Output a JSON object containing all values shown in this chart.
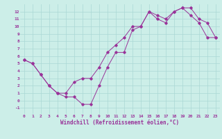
{
  "xlabel": "Windchill (Refroidissement éolien,°C)",
  "xlim": [
    -0.5,
    23.5
  ],
  "ylim": [
    -1.8,
    13.0
  ],
  "xticks": [
    0,
    1,
    2,
    3,
    4,
    5,
    6,
    7,
    8,
    9,
    10,
    11,
    12,
    13,
    14,
    15,
    16,
    17,
    18,
    19,
    20,
    21,
    22,
    23
  ],
  "yticks": [
    -1,
    0,
    1,
    2,
    3,
    4,
    5,
    6,
    7,
    8,
    9,
    10,
    11,
    12
  ],
  "background_color": "#cceee8",
  "grid_color": "#aad8d4",
  "line_color": "#993399",
  "line1_y": [
    5.5,
    5.0,
    3.5,
    2.0,
    1.0,
    0.5,
    0.5,
    -0.5,
    -0.5,
    2.0,
    4.5,
    6.5,
    6.5,
    9.5,
    10.0,
    12.0,
    11.0,
    10.5,
    12.0,
    12.5,
    11.5,
    10.5,
    8.5,
    8.5
  ],
  "line2_y": [
    5.5,
    5.0,
    3.5,
    2.0,
    1.0,
    1.0,
    2.5,
    3.0,
    3.0,
    4.5,
    6.5,
    7.5,
    8.5,
    10.0,
    10.0,
    12.0,
    11.5,
    11.0,
    12.0,
    12.5,
    12.5,
    11.0,
    10.5,
    8.5
  ],
  "tick_fontsize": 4.5,
  "label_fontsize": 5.5
}
